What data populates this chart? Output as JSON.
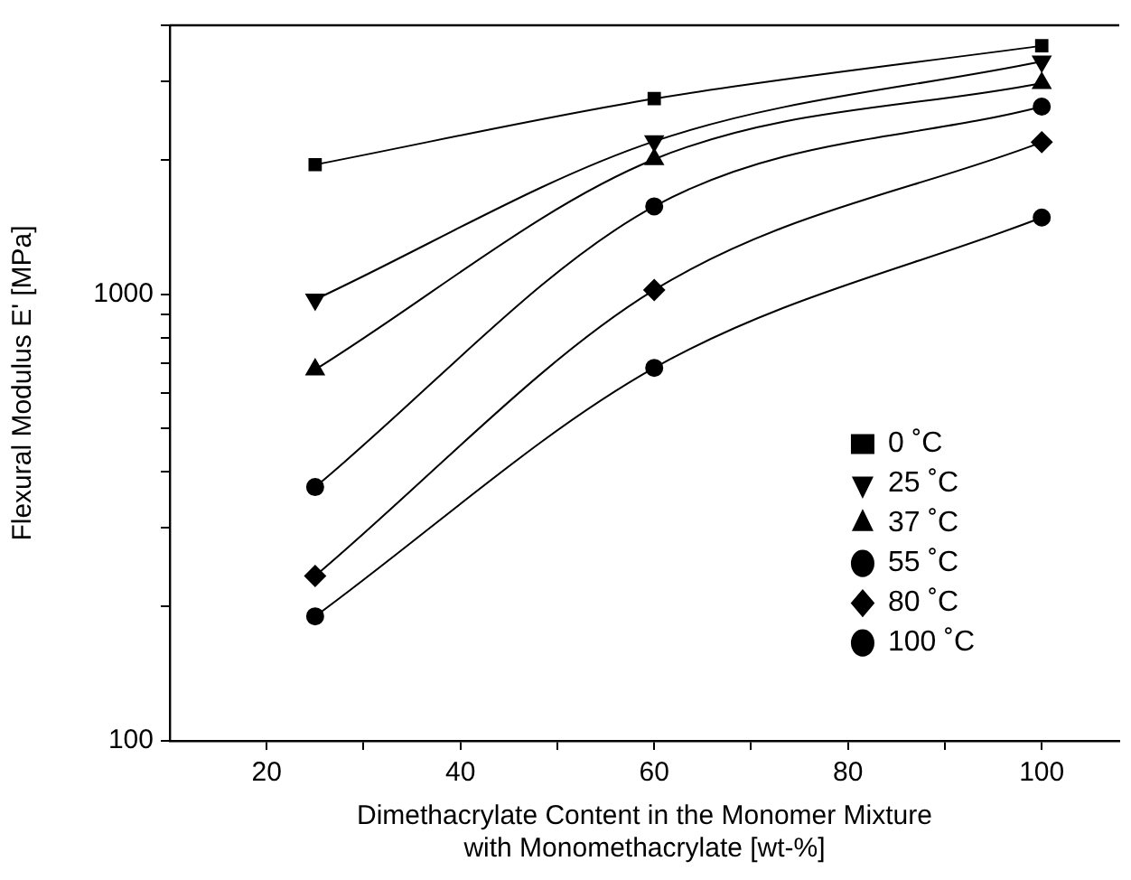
{
  "chart_data": {
    "type": "line",
    "xlabel": "Dimethacrylate Content in the Monomer Mixture\nwith Monomethacrylate [wt-%]",
    "ylabel": "Flexural Modulus E' [MPa]",
    "x": [
      25,
      60,
      100
    ],
    "series": [
      {
        "name": "0 ˚C",
        "color": "#000000",
        "marker": "square",
        "values": [
          1950,
          2740,
          3600
        ]
      },
      {
        "name": "25 ˚C",
        "color": "#000000",
        "marker": "triangle-down",
        "values": [
          973,
          2200,
          3320
        ]
      },
      {
        "name": "37 ˚C",
        "color": "#000000",
        "marker": "triangle",
        "values": [
          678,
          2005,
          2970
        ]
      },
      {
        "name": "55 ˚C",
        "color": "#000000",
        "marker": "circle",
        "values": [
          370,
          1573,
          2630
        ]
      },
      {
        "name": "80 ˚C",
        "color": "#000000",
        "marker": "diamond",
        "values": [
          234,
          1022,
          2190
        ]
      },
      {
        "name": "100 ˚C",
        "color": "#000000",
        "marker": "circle",
        "values": [
          190,
          684,
          1485
        ]
      }
    ],
    "log": "y",
    "xlim": [
      10,
      108
    ],
    "ylim": [
      100,
      4000
    ],
    "xticks": [
      20,
      {
        "value": 30,
        "label": null
      },
      40,
      {
        "value": 50,
        "label": null
      },
      60,
      {
        "value": 70,
        "label": null
      },
      80,
      {
        "value": 90,
        "label": null
      },
      100
    ],
    "yticks": [
      100,
      {
        "value": 200,
        "label": null
      },
      {
        "value": 300,
        "label": null
      },
      {
        "value": 400,
        "label": null
      },
      {
        "value": 500,
        "label": null
      },
      {
        "value": 600,
        "label": null
      },
      {
        "value": 700,
        "label": null
      },
      {
        "value": 800,
        "label": null
      },
      {
        "value": 900,
        "label": null
      },
      1000,
      {
        "value": 2000,
        "label": null
      },
      {
        "value": 3000,
        "label": null
      },
      {
        "value": 4000,
        "label": null
      }
    ],
    "grid": false,
    "legend": "right",
    "line_style": "solid"
  }
}
